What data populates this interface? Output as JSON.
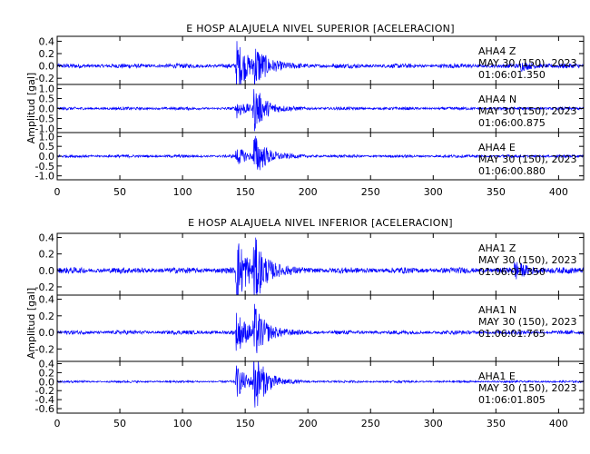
{
  "chart_data": [
    {
      "type": "line",
      "title": "E HOSP ALAJUELA NIVEL SUPERIOR [ACELERACION]",
      "ylabel": "Amplitud [gal]",
      "x_ticks": [
        "0",
        "50",
        "100",
        "150",
        "200",
        "250",
        "300",
        "350",
        "400"
      ],
      "xlim": [
        0,
        420
      ],
      "series": [
        {
          "name": "AHA4 Z",
          "label_lines": [
            "AHA4   Z",
            "MAY 30 (150), 2023",
            "01:06:01.350"
          ],
          "ylim": [
            -0.3,
            0.48
          ],
          "y_ticks": [
            "0.4",
            "0.2",
            "0.0",
            "-0.2"
          ],
          "y_tick_values": [
            0.4,
            0.2,
            0.0,
            -0.2
          ],
          "noise": 0.03,
          "events": [
            {
              "t": 143,
              "amp": 0.42
            },
            {
              "t": 157,
              "amp": 0.35
            },
            {
              "t": 370,
              "amp": 0.06
            }
          ]
        },
        {
          "name": "AHA4 N",
          "label_lines": [
            "AHA4   N",
            "MAY 30 (150), 2023",
            "01:06:00.875"
          ],
          "ylim": [
            -1.2,
            1.2
          ],
          "y_ticks": [
            "1.0",
            "0.5",
            "0.0",
            "-0.5",
            "-1.0"
          ],
          "y_tick_values": [
            1.0,
            0.5,
            0.0,
            -0.5,
            -1.0
          ],
          "noise": 0.06,
          "events": [
            {
              "t": 143,
              "amp": 0.45
            },
            {
              "t": 157,
              "amp": 1.15
            }
          ]
        },
        {
          "name": "AHA4 E",
          "label_lines": [
            "AHA4   E",
            "MAY 30 (150), 2023",
            "01:06:00.880"
          ],
          "ylim": [
            -1.2,
            1.2
          ],
          "y_ticks": [
            "1.0",
            "0.5",
            "0.0",
            "-0.5",
            "-1.0"
          ],
          "y_tick_values": [
            1.0,
            0.5,
            0.0,
            -0.5,
            -1.0
          ],
          "noise": 0.06,
          "events": [
            {
              "t": 143,
              "amp": 0.45
            },
            {
              "t": 157,
              "amp": 1.15
            }
          ]
        }
      ]
    },
    {
      "type": "line",
      "title": "E HOSP ALAJUELA NIVEL INFERIOR [ACELERACION]",
      "ylabel": "Amplitud [gal]",
      "x_ticks": [
        "0",
        "50",
        "100",
        "150",
        "200",
        "250",
        "300",
        "350",
        "400"
      ],
      "xlim": [
        0,
        420
      ],
      "series": [
        {
          "name": "AHA1 Z",
          "label_lines": [
            "AHA1   Z",
            "MAY 30 (150), 2023",
            "01:06:01.350"
          ],
          "ylim": [
            -0.3,
            0.45
          ],
          "y_ticks": [
            "0.4",
            "0.2",
            "0.0",
            "-0.2"
          ],
          "y_tick_values": [
            0.4,
            0.2,
            0.0,
            -0.2
          ],
          "noise": 0.03,
          "events": [
            {
              "t": 143,
              "amp": 0.42
            },
            {
              "t": 157,
              "amp": 0.35
            },
            {
              "t": 365,
              "amp": 0.1
            }
          ]
        },
        {
          "name": "AHA1 N",
          "label_lines": [
            "AHA1   N",
            "MAY 30 (150), 2023",
            "01:06:01.765"
          ],
          "ylim": [
            -0.35,
            0.45
          ],
          "y_ticks": [
            "0.4",
            "0.2",
            "0.0",
            "-0.2"
          ],
          "y_tick_values": [
            0.4,
            0.2,
            0.0,
            -0.2
          ],
          "noise": 0.02,
          "events": [
            {
              "t": 143,
              "amp": 0.25
            },
            {
              "t": 157,
              "amp": 0.3
            }
          ]
        },
        {
          "name": "AHA1 E",
          "label_lines": [
            "AHA1   E",
            "MAY 30 (150), 2023",
            "01:06:01.805"
          ],
          "ylim": [
            -0.7,
            0.45
          ],
          "y_ticks": [
            "0.4",
            "0.2",
            "0.0",
            "-0.2",
            "-0.4",
            "-0.6"
          ],
          "y_tick_values": [
            0.4,
            0.2,
            0.0,
            -0.2,
            -0.4,
            -0.6
          ],
          "noise": 0.02,
          "events": [
            {
              "t": 143,
              "amp": 0.35
            },
            {
              "t": 157,
              "amp": 0.68
            }
          ]
        }
      ]
    }
  ]
}
